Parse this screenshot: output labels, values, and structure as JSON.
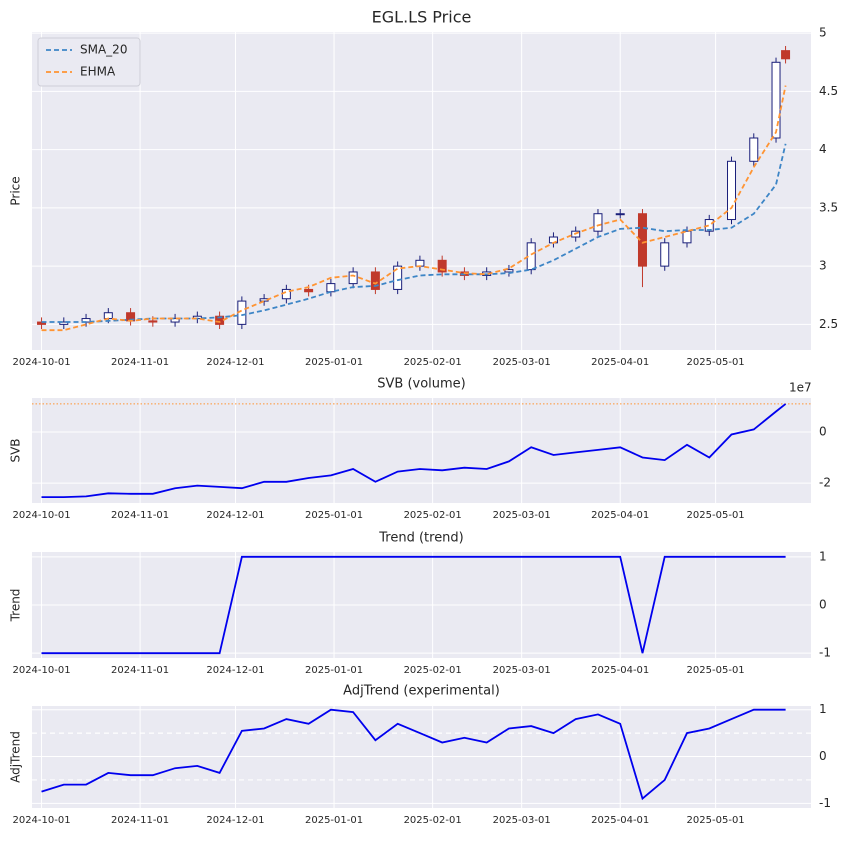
{
  "chart_data": [
    {
      "type": "candlestick",
      "title": "EGL.LS Price",
      "y_label": "Price",
      "x": [
        "2024-10-01",
        "2024-10-08",
        "2024-10-15",
        "2024-10-22",
        "2024-10-29",
        "2024-11-05",
        "2024-11-12",
        "2024-11-19",
        "2024-11-26",
        "2024-12-03",
        "2024-12-10",
        "2024-12-17",
        "2024-12-24",
        "2024-12-31",
        "2025-01-07",
        "2025-01-14",
        "2025-01-21",
        "2025-01-28",
        "2025-02-04",
        "2025-02-11",
        "2025-02-18",
        "2025-02-25",
        "2025-03-04",
        "2025-03-11",
        "2025-03-18",
        "2025-03-25",
        "2025-04-01",
        "2025-04-08",
        "2025-04-15",
        "2025-04-22",
        "2025-04-29",
        "2025-05-06",
        "2025-05-13",
        "2025-05-20",
        "2025-05-23"
      ],
      "open": [
        2.52,
        2.5,
        2.52,
        2.55,
        2.6,
        2.53,
        2.52,
        2.55,
        2.57,
        2.5,
        2.7,
        2.72,
        2.8,
        2.78,
        2.85,
        2.95,
        2.8,
        3.0,
        3.05,
        2.95,
        2.92,
        2.95,
        2.97,
        3.2,
        3.25,
        3.3,
        3.45,
        3.45,
        3.0,
        3.2,
        3.3,
        3.4,
        3.9,
        4.1,
        4.85
      ],
      "high": [
        2.56,
        2.56,
        2.59,
        2.64,
        2.64,
        2.57,
        2.59,
        2.61,
        2.61,
        2.74,
        2.76,
        2.84,
        2.84,
        2.89,
        2.99,
        2.99,
        3.04,
        3.09,
        3.09,
        2.99,
        2.99,
        3.01,
        3.24,
        3.29,
        3.34,
        3.49,
        3.49,
        3.49,
        3.24,
        3.34,
        3.44,
        3.94,
        4.14,
        4.79,
        4.89
      ],
      "low": [
        2.46,
        2.46,
        2.48,
        2.51,
        2.49,
        2.48,
        2.48,
        2.51,
        2.46,
        2.46,
        2.66,
        2.68,
        2.74,
        2.74,
        2.81,
        2.76,
        2.76,
        2.96,
        2.91,
        2.88,
        2.88,
        2.91,
        2.93,
        3.16,
        3.21,
        3.26,
        3.41,
        2.82,
        2.96,
        3.16,
        3.26,
        3.36,
        3.86,
        4.06,
        4.74
      ],
      "close": [
        2.5,
        2.52,
        2.55,
        2.6,
        2.53,
        2.52,
        2.55,
        2.57,
        2.5,
        2.7,
        2.72,
        2.8,
        2.78,
        2.85,
        2.95,
        2.8,
        3.0,
        3.05,
        2.95,
        2.92,
        2.95,
        2.97,
        3.2,
        3.25,
        3.3,
        3.45,
        3.45,
        3.0,
        3.2,
        3.3,
        3.4,
        3.9,
        4.1,
        4.75,
        4.78
      ],
      "up_color": "#1a1f7a",
      "down_color": "#c0392b",
      "series": [
        {
          "name": "SMA_20",
          "color": "#3d85c6",
          "values": [
            2.52,
            2.52,
            2.52,
            2.53,
            2.54,
            2.55,
            2.55,
            2.55,
            2.56,
            2.58,
            2.62,
            2.67,
            2.72,
            2.78,
            2.82,
            2.83,
            2.88,
            2.92,
            2.93,
            2.93,
            2.93,
            2.94,
            2.97,
            3.05,
            3.15,
            3.25,
            3.32,
            3.33,
            3.3,
            3.31,
            3.31,
            3.33,
            3.45,
            3.7,
            4.05
          ]
        },
        {
          "name": "EHMA",
          "color": "#ff9433",
          "values": [
            2.45,
            2.45,
            2.5,
            2.55,
            2.53,
            2.55,
            2.55,
            2.55,
            2.52,
            2.62,
            2.7,
            2.78,
            2.82,
            2.9,
            2.92,
            2.85,
            2.98,
            3.0,
            2.97,
            2.94,
            2.93,
            2.98,
            3.1,
            3.2,
            3.28,
            3.35,
            3.4,
            3.2,
            3.25,
            3.3,
            3.35,
            3.5,
            3.85,
            4.15,
            4.55
          ]
        }
      ],
      "legend": "upper left",
      "grid": true,
      "xlim": [
        "2024-09-28",
        "2025-05-31"
      ],
      "xticks": [
        "2024-10-01",
        "2024-11-01",
        "2024-12-01",
        "2025-01-01",
        "2025-02-01",
        "2025-03-01",
        "2025-04-01",
        "2025-05-01"
      ],
      "ylim": [
        2.28,
        5.01
      ],
      "yticks": [
        2.5,
        3.0,
        3.5,
        4.0,
        4.5,
        5.0
      ]
    },
    {
      "type": "line",
      "title": "SVB (volume)",
      "y_label": "SVB",
      "y_offset_label": "1e7",
      "x": [
        "2024-10-01",
        "2024-10-08",
        "2024-10-15",
        "2024-10-22",
        "2024-10-29",
        "2024-11-05",
        "2024-11-12",
        "2024-11-19",
        "2024-11-26",
        "2024-12-03",
        "2024-12-10",
        "2024-12-17",
        "2024-12-24",
        "2024-12-31",
        "2025-01-07",
        "2025-01-14",
        "2025-01-21",
        "2025-01-28",
        "2025-02-04",
        "2025-02-11",
        "2025-02-18",
        "2025-02-25",
        "2025-03-04",
        "2025-03-11",
        "2025-03-18",
        "2025-03-25",
        "2025-04-01",
        "2025-04-08",
        "2025-04-15",
        "2025-04-22",
        "2025-04-29",
        "2025-05-06",
        "2025-05-13",
        "2025-05-20",
        "2025-05-23"
      ],
      "values": [
        -2.55,
        -2.55,
        -2.52,
        -2.4,
        -2.42,
        -2.42,
        -2.2,
        -2.1,
        -2.15,
        -2.2,
        -1.95,
        -1.95,
        -1.8,
        -1.7,
        -1.45,
        -1.95,
        -1.55,
        -1.45,
        -1.5,
        -1.4,
        -1.45,
        -1.15,
        -0.6,
        -0.9,
        -0.8,
        -0.7,
        -0.6,
        -1.0,
        -1.1,
        -0.5,
        -1.0,
        -0.1,
        0.1,
        0.8,
        1.1
      ],
      "color": "#0000ee",
      "hline": 1.1,
      "hline_color": "#ff9433",
      "grid": true,
      "xlim": [
        "2024-09-28",
        "2025-05-31"
      ],
      "xticks": [
        "2024-10-01",
        "2024-11-01",
        "2024-12-01",
        "2025-01-01",
        "2025-02-01",
        "2025-03-01",
        "2025-04-01",
        "2025-05-01"
      ],
      "ylim": [
        -2.78,
        1.33
      ],
      "yticks": [
        -2,
        0
      ]
    },
    {
      "type": "line",
      "title": "Trend (trend)",
      "y_label": "Trend",
      "x": [
        "2024-10-01",
        "2024-10-08",
        "2024-10-15",
        "2024-10-22",
        "2024-10-29",
        "2024-11-05",
        "2024-11-12",
        "2024-11-19",
        "2024-11-26",
        "2024-12-03",
        "2024-12-10",
        "2024-12-17",
        "2024-12-24",
        "2024-12-31",
        "2025-01-07",
        "2025-01-14",
        "2025-01-21",
        "2025-01-28",
        "2025-02-04",
        "2025-02-11",
        "2025-02-18",
        "2025-02-25",
        "2025-03-04",
        "2025-03-11",
        "2025-03-18",
        "2025-03-25",
        "2025-04-01",
        "2025-04-08",
        "2025-04-15",
        "2025-04-22",
        "2025-04-29",
        "2025-05-06",
        "2025-05-13",
        "2025-05-20",
        "2025-05-23"
      ],
      "values": [
        -1,
        -1,
        -1,
        -1,
        -1,
        -1,
        -1,
        -1,
        -1,
        1,
        1,
        1,
        1,
        1,
        1,
        1,
        1,
        1,
        1,
        1,
        1,
        1,
        1,
        1,
        1,
        1,
        1,
        -1,
        1,
        1,
        1,
        1,
        1,
        1,
        1
      ],
      "color": "#0000ee",
      "grid": true,
      "xlim": [
        "2024-09-28",
        "2025-05-31"
      ],
      "xticks": [
        "2024-10-01",
        "2024-11-01",
        "2024-12-01",
        "2025-01-01",
        "2025-02-01",
        "2025-03-01",
        "2025-04-01",
        "2025-05-01"
      ],
      "ylim": [
        -1.1,
        1.1
      ],
      "yticks": [
        -1,
        0,
        1
      ]
    },
    {
      "type": "line",
      "title": "AdjTrend (experimental)",
      "y_label": "AdjTrend",
      "x": [
        "2024-10-01",
        "2024-10-08",
        "2024-10-15",
        "2024-10-22",
        "2024-10-29",
        "2024-11-05",
        "2024-11-12",
        "2024-11-19",
        "2024-11-26",
        "2024-12-03",
        "2024-12-10",
        "2024-12-17",
        "2024-12-24",
        "2024-12-31",
        "2025-01-07",
        "2025-01-14",
        "2025-01-21",
        "2025-01-28",
        "2025-02-04",
        "2025-02-11",
        "2025-02-18",
        "2025-02-25",
        "2025-03-04",
        "2025-03-11",
        "2025-03-18",
        "2025-03-25",
        "2025-04-01",
        "2025-04-08",
        "2025-04-15",
        "2025-04-22",
        "2025-04-29",
        "2025-05-06",
        "2025-05-13",
        "2025-05-20",
        "2025-05-23"
      ],
      "values": [
        -0.75,
        -0.6,
        -0.6,
        -0.35,
        -0.4,
        -0.4,
        -0.25,
        -0.2,
        -0.35,
        0.55,
        0.6,
        0.8,
        0.7,
        1.0,
        0.95,
        0.35,
        0.7,
        0.5,
        0.3,
        0.4,
        0.3,
        0.6,
        0.65,
        0.5,
        0.8,
        0.9,
        0.7,
        -0.9,
        -0.5,
        0.5,
        0.6,
        0.8,
        1.0,
        1.0,
        1.0
      ],
      "color": "#0000ee",
      "hlines": [
        0.5,
        -0.5
      ],
      "hline_color": "#ffffff",
      "grid": true,
      "xlim": [
        "2024-09-28",
        "2025-05-31"
      ],
      "xticks": [
        "2024-10-01",
        "2024-11-01",
        "2024-12-01",
        "2025-01-01",
        "2025-02-01",
        "2025-03-01",
        "2025-04-01",
        "2025-05-01"
      ],
      "ylim": [
        -1.1,
        1.08
      ],
      "yticks": [
        -1,
        0,
        1
      ]
    }
  ]
}
